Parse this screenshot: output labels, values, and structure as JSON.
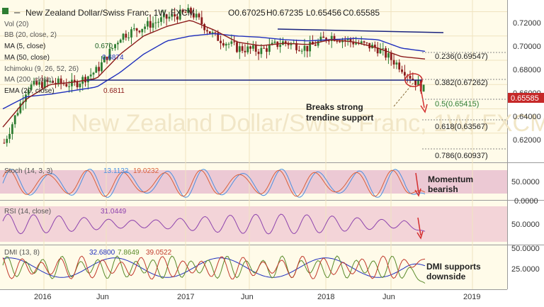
{
  "header": {
    "symbol_title": "New Zealand Dollar/Swiss Franc, 1W, FXCM",
    "ohlc": {
      "open": "O0.67025",
      "high": "H0.67235",
      "low": "L0.65456",
      "close": "C0.65585"
    }
  },
  "indicator_legends": [
    {
      "label": "Vol (20)",
      "value": "",
      "color": "#555555"
    },
    {
      "label": "BB (20, close, 2)",
      "value": "",
      "color": "#555555"
    },
    {
      "label": "MA (5, close)",
      "value": "0.670",
      "color": "#1b5e20"
    },
    {
      "label": "MA (50, close)",
      "value": "0.6874",
      "color": "#1f2fbd"
    },
    {
      "label": "Ichimoku (9, 26, 52, 26)",
      "value": "",
      "color": "#555555"
    },
    {
      "label": "MA (200, close)",
      "value": "",
      "color": "#555555"
    },
    {
      "label": "EMA (20, close)",
      "value": "0.6811",
      "color": "#8b1a1a"
    }
  ],
  "price_axis": {
    "ticks": [
      "0.72000",
      "0.70000",
      "0.68000",
      "0.66000",
      "0.64000",
      "0.62000"
    ],
    "last_price": "0.65585"
  },
  "fib_levels": [
    {
      "label": "0.236(0.69547)",
      "value": 0.69547,
      "color": "#222222"
    },
    {
      "label": "0.382(0.67262)",
      "value": 0.67262,
      "color": "#222222"
    },
    {
      "label": "0.5(0.65415)",
      "value": 0.65415,
      "color": "#2e7d32"
    },
    {
      "label": "0.618(0.63567)",
      "value": 0.63567,
      "color": "#222222"
    },
    {
      "label": "0.786(0.60937)",
      "value": 0.60937,
      "color": "#222222"
    }
  ],
  "annotations": {
    "trendline": "Breaks strong\ntrendine support",
    "stoch": "Momentum\nbearish",
    "dmi": "DMI supports\ndownside"
  },
  "stoch": {
    "legend": "Stoch (14, 3, 3)",
    "k_value": "13.1132",
    "d_value": "19.0232",
    "axis_ticks": [
      "50.0000",
      "0.0000"
    ]
  },
  "rsi": {
    "legend": "RSI (14, close)",
    "value": "31.0449",
    "axis_ticks": [
      "50.0000"
    ]
  },
  "dmi": {
    "legend": "DMI (13, 8)",
    "adx": "32.6800",
    "plus_di": "7.8649",
    "minus_di": "39.0522",
    "axis_ticks": [
      "50.0000",
      "25.0000"
    ]
  },
  "time_axis": {
    "labels": [
      "2016",
      "Jun",
      "2017",
      "Jun",
      "2018",
      "Jun",
      "2019"
    ]
  },
  "colors": {
    "up_candle": "#2e7d32",
    "down_candle": "#8b1a1a",
    "ma50": "#1f2fbd",
    "ema20": "#8b1a1a",
    "trendline": "#1a237e",
    "arrow": "#d32f2f",
    "stoch_band": "#ecc9d4",
    "rsi_band": "#f3d4d8",
    "stoch_k": "#4a8fe0",
    "stoch_d": "#d9603a",
    "rsi_line": "#8e44ad",
    "dmi_adx": "#1f2fbd",
    "dmi_plus": "#5a8a2a",
    "dmi_minus": "#c0392b"
  },
  "chart_data": {
    "type": "candlestick",
    "title": "New Zealand Dollar/Swiss Franc, 1W, FXCM",
    "ylim": [
      0.6,
      0.725
    ],
    "x": [
      "2015-10",
      "2015-12",
      "2016-02",
      "2016-04",
      "2016-06",
      "2016-08",
      "2016-10",
      "2016-12",
      "2017-02",
      "2017-04",
      "2017-06",
      "2017-08",
      "2017-10",
      "2017-12",
      "2018-02",
      "2018-04",
      "2018-06",
      "2018-08",
      "2018-09"
    ],
    "series": [
      {
        "name": "Close",
        "values": [
          0.612,
          0.658,
          0.662,
          0.66,
          0.672,
          0.7,
          0.708,
          0.715,
          0.72,
          0.7,
          0.69,
          0.688,
          0.695,
          0.69,
          0.7,
          0.695,
          0.69,
          0.675,
          0.6559
        ]
      },
      {
        "name": "MA (50, close)",
        "values": [
          0.64,
          0.65,
          0.652,
          0.655,
          0.658,
          0.67,
          0.685,
          0.696,
          0.7,
          0.702,
          0.7,
          0.699,
          0.697,
          0.696,
          0.697,
          0.698,
          0.697,
          0.69,
          0.6874
        ]
      },
      {
        "name": "EMA (20, close)",
        "values": [
          0.625,
          0.648,
          0.66,
          0.662,
          0.665,
          0.685,
          0.7,
          0.708,
          0.713,
          0.705,
          0.695,
          0.692,
          0.694,
          0.693,
          0.697,
          0.695,
          0.69,
          0.683,
          0.6811
        ]
      }
    ],
    "panels": [
      {
        "name": "Stoch (14, 3, 3)",
        "k": 13.1132,
        "d": 19.0232
      },
      {
        "name": "RSI (14, close)",
        "value": 31.0449
      },
      {
        "name": "DMI (13, 8)",
        "adx": 32.68,
        "plus_di": 7.8649,
        "minus_di": 39.0522
      }
    ]
  }
}
